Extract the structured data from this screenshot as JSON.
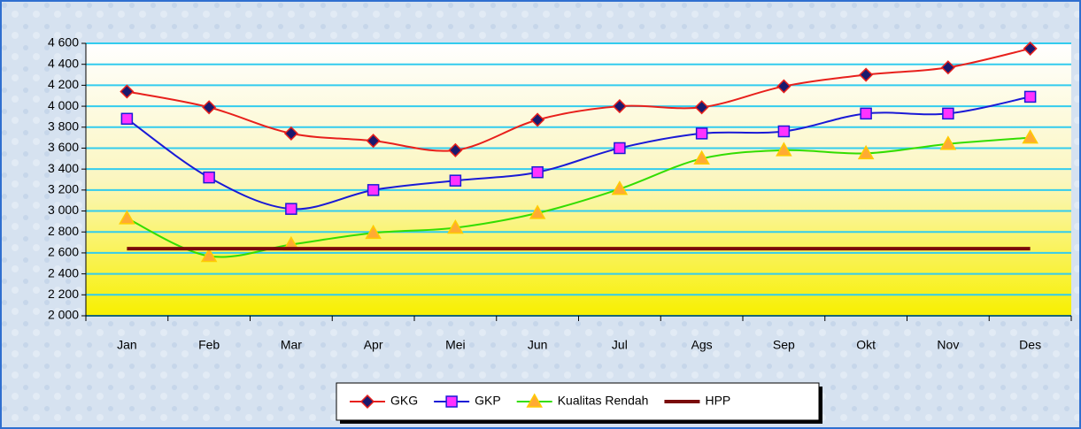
{
  "chart_data": {
    "type": "line",
    "categories": [
      "Jan",
      "Feb",
      "Mar",
      "Apr",
      "Mei",
      "Jun",
      "Jul",
      "Ags",
      "Sep",
      "Okt",
      "Nov",
      "Des"
    ],
    "series": [
      {
        "name": "GKG",
        "color": "#e8201c",
        "marker": "diamond",
        "marker_color": "#1a1a6e",
        "values": [
          4140,
          3990,
          3740,
          3670,
          3580,
          3870,
          4000,
          3990,
          4190,
          4300,
          4370,
          4550
        ]
      },
      {
        "name": "GKP",
        "color": "#1a1ad6",
        "marker": "square",
        "marker_color": "#ff33ff",
        "values": [
          3880,
          3320,
          3020,
          3200,
          3290,
          3370,
          3600,
          3740,
          3760,
          3930,
          3930,
          4090
        ]
      },
      {
        "name": "Kualitas Rendah",
        "color": "#33dd00",
        "marker": "triangle",
        "marker_color": "#ffaa33",
        "values": [
          2930,
          2570,
          2680,
          2790,
          2840,
          2980,
          3210,
          3500,
          3580,
          3550,
          3640,
          3700
        ]
      },
      {
        "name": "HPP",
        "color": "#7a0a0a",
        "marker": "none",
        "values": [
          2640,
          2640,
          2640,
          2640,
          2640,
          2640,
          2640,
          2640,
          2640,
          2640,
          2640,
          2640
        ]
      }
    ],
    "ylim": [
      2000,
      4600
    ],
    "yticks": [
      {
        "value": 2000,
        "label": "2 000"
      },
      {
        "value": 2200,
        "label": "2 200"
      },
      {
        "value": 2400,
        "label": "2 400"
      },
      {
        "value": 2600,
        "label": "2 600"
      },
      {
        "value": 2800,
        "label": "2 800"
      },
      {
        "value": 3000,
        "label": "3 000"
      },
      {
        "value": 3200,
        "label": "3 200"
      },
      {
        "value": 3400,
        "label": "3 400"
      },
      {
        "value": 3600,
        "label": "3 600"
      },
      {
        "value": 3800,
        "label": "3 800"
      },
      {
        "value": 4000,
        "label": "4 000"
      },
      {
        "value": 4200,
        "label": "4 200"
      },
      {
        "value": 4400,
        "label": "4 400"
      },
      {
        "value": 4600,
        "label": "4 600"
      }
    ],
    "grid": true,
    "legend": "bottom"
  }
}
